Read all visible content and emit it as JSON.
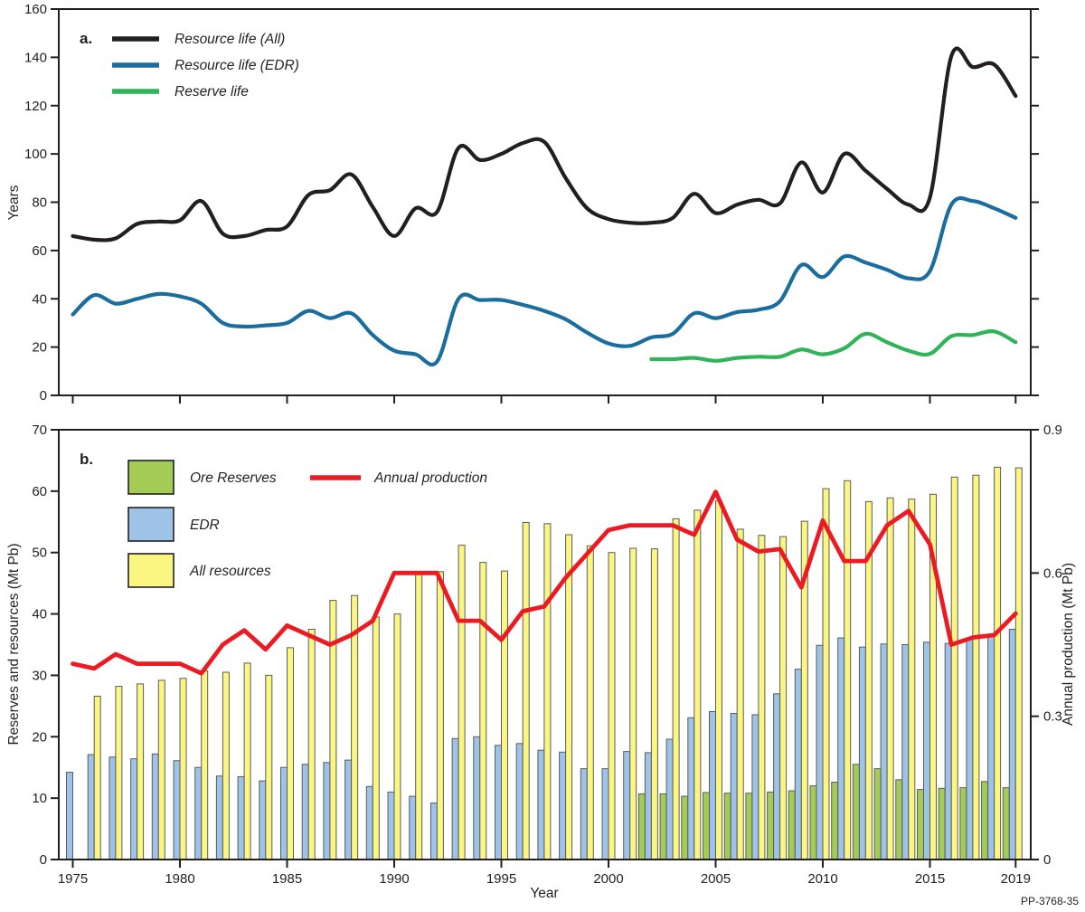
{
  "figure_id": "PP-3768-35",
  "colors": {
    "axis": "#231f20",
    "resource_life_all": "#231f20",
    "resource_life_edr": "#1b6d9e",
    "reserve_life": "#2fb457",
    "annual_production": "#ec1b23",
    "ore_reserves_fill": "#a3cb55",
    "edr_fill": "#9fc2e7",
    "all_resources_fill": "#fbf582",
    "bar_stroke": "#5b5c5e"
  },
  "chart_data": [
    {
      "type": "line",
      "panel_label": "a.",
      "ylabel": "Years",
      "ylim": [
        0,
        160
      ],
      "yticks": [
        0,
        20,
        40,
        60,
        80,
        100,
        120,
        140,
        160
      ],
      "xlim": [
        1974.35,
        2019.7
      ],
      "xticks": [
        1975,
        1980,
        1985,
        1990,
        1995,
        2000,
        2005,
        2010,
        2015,
        2019
      ],
      "grid": false,
      "legend_position": "top-left",
      "series": [
        {
          "name": "Resource life (All)",
          "color_key": "resource_life_all",
          "start_year": 1975,
          "values": [
            66,
            64.5,
            65,
            71,
            72,
            72.5,
            80.5,
            67,
            66,
            68.5,
            70,
            83,
            85,
            91.5,
            78,
            66,
            77.5,
            76,
            102.5,
            97.5,
            100,
            104.5,
            105,
            90,
            77.5,
            73,
            71.5,
            71.5,
            73.5,
            83.5,
            75.5,
            79,
            81,
            79.5,
            96.5,
            84,
            100,
            93,
            85.5,
            79,
            82,
            140.5,
            136,
            137,
            124
          ]
        },
        {
          "name": "Resource life (EDR)",
          "color_key": "resource_life_edr",
          "start_year": 1975,
          "values": [
            33.5,
            41.5,
            38,
            40,
            42,
            41,
            38,
            30,
            28.5,
            29,
            30,
            35,
            32,
            34,
            25,
            18.5,
            17,
            14,
            40,
            39.5,
            39.5,
            37.5,
            35,
            31.5,
            26,
            21.5,
            20.5,
            24,
            25.5,
            34,
            32,
            34.5,
            35.5,
            39,
            54,
            49,
            57.5,
            55,
            52,
            48.5,
            51.5,
            79,
            80.5,
            77.5,
            73.5
          ]
        },
        {
          "name": "Reserve life",
          "color_key": "reserve_life",
          "start_year": 2002,
          "values": [
            15,
            15,
            15.5,
            14.3,
            15.5,
            16,
            16,
            19,
            17,
            19.5,
            25.5,
            22,
            18.5,
            17.2,
            24.5,
            25,
            26.5,
            22
          ]
        }
      ]
    },
    {
      "type": "bar",
      "panel_label": "b.",
      "ylabel_left": "Reserves and resources (Mt Pb)",
      "ylabel_right": "Annual production (Mt Pb)",
      "xlabel": "Year",
      "ylim_left": [
        0,
        70
      ],
      "ylim_right": [
        0,
        0.9
      ],
      "yticks_left": [
        0,
        10,
        20,
        30,
        40,
        50,
        60,
        70
      ],
      "yticks_right": [
        "0",
        "0.3",
        "0.6",
        "0.9"
      ],
      "xticks": [
        1975,
        1980,
        1985,
        1990,
        1995,
        2000,
        2005,
        2010,
        2015,
        2019
      ],
      "grid": false,
      "bar_series": [
        {
          "name": "Ore Reserves",
          "color_key": "ore_reserves_fill",
          "start_year": 2002,
          "values": [
            10.7,
            10.7,
            10.3,
            10.9,
            10.8,
            10.8,
            11.0,
            11.2,
            12.0,
            12.6,
            15.5,
            14.8,
            13.0,
            11.4,
            11.6,
            11.7,
            12.7,
            11.7
          ]
        },
        {
          "name": "EDR",
          "color_key": "edr_fill",
          "start_year": 1975,
          "values": [
            14.2,
            17.1,
            16.7,
            16.4,
            17.2,
            16.1,
            15.0,
            13.6,
            13.5,
            12.8,
            15.0,
            15.5,
            15.8,
            16.2,
            11.9,
            11.0,
            10.3,
            9.2,
            19.7,
            20.0,
            18.6,
            18.9,
            17.8,
            17.5,
            14.8,
            14.8,
            17.6,
            17.4,
            19.6,
            23.1,
            24.1,
            23.8,
            23.6,
            27.0,
            31.0,
            34.9,
            36.1,
            34.6,
            35.1,
            35.0,
            35.4,
            35.2,
            36.0,
            36.4,
            37.5
          ]
        },
        {
          "name": "All resources",
          "color_key": "all_resources_fill",
          "start_year": 1976,
          "values": [
            26.6,
            28.2,
            28.6,
            29.2,
            29.5,
            30.7,
            30.5,
            32.0,
            30.0,
            34.5,
            37.5,
            42.2,
            43.0,
            39.5,
            40.0,
            46.7,
            46.9,
            51.2,
            48.4,
            47.0,
            54.9,
            54.7,
            52.9,
            51.1,
            50.0,
            50.7,
            50.6,
            55.5,
            56.9,
            58.4,
            53.8,
            52.8,
            52.6,
            55.1,
            60.4,
            61.7,
            58.3,
            58.9,
            58.7,
            59.5,
            62.3,
            62.6,
            63.9,
            63.8
          ]
        }
      ],
      "line_series": {
        "name": "Annual production",
        "color_key": "annual_production",
        "axis": "right",
        "start_year": 1975,
        "values": [
          0.41,
          0.4,
          0.43,
          0.41,
          0.41,
          0.41,
          0.39,
          0.45,
          0.48,
          0.44,
          0.49,
          0.47,
          0.45,
          0.47,
          0.5,
          0.6,
          0.6,
          0.6,
          0.5,
          0.5,
          0.46,
          0.52,
          0.53,
          0.59,
          0.64,
          0.69,
          0.7,
          0.7,
          0.7,
          0.68,
          0.77,
          0.67,
          0.645,
          0.65,
          0.57,
          0.71,
          0.625,
          0.625,
          0.7,
          0.73,
          0.66,
          0.45,
          0.465,
          0.47,
          0.515
        ]
      }
    }
  ]
}
